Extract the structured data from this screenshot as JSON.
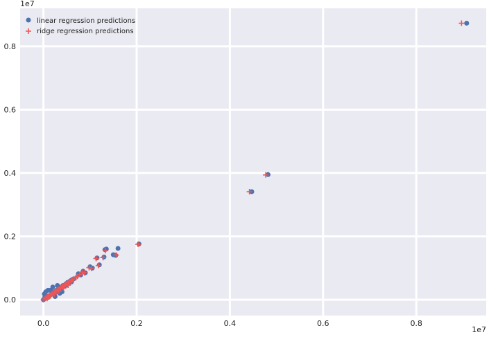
{
  "chart_data": {
    "type": "scatter",
    "title": "",
    "xlabel": "",
    "ylabel": "",
    "x_offset_label": "1e7",
    "y_offset_label": "1e7",
    "xlim": [
      -0.05,
      0.95
    ],
    "ylim": [
      -0.05,
      0.92
    ],
    "xticks": [
      0.0,
      0.2,
      0.4,
      0.6,
      0.8
    ],
    "xtick_labels": [
      "0.0",
      "0.2",
      "0.4",
      "0.6",
      "0.8"
    ],
    "yticks": [
      0.0,
      0.2,
      0.4,
      0.6,
      0.8
    ],
    "ytick_labels": [
      "0.0",
      "0.2",
      "0.4",
      "0.6",
      "0.8"
    ],
    "grid": true,
    "legend_position": "top-left",
    "series": [
      {
        "name": "linear regression predictions",
        "marker": "circle",
        "color": "#4c72b0",
        "points": [
          [
            0.0,
            0.0
          ],
          [
            0.005,
            0.005
          ],
          [
            0.008,
            0.01
          ],
          [
            0.01,
            0.007
          ],
          [
            0.012,
            0.012
          ],
          [
            0.015,
            0.015
          ],
          [
            0.018,
            0.02
          ],
          [
            0.02,
            0.018
          ],
          [
            0.022,
            0.025
          ],
          [
            0.025,
            0.022
          ],
          [
            0.028,
            0.03
          ],
          [
            0.03,
            0.028
          ],
          [
            0.033,
            0.035
          ],
          [
            0.035,
            0.032
          ],
          [
            0.038,
            0.04
          ],
          [
            0.04,
            0.038
          ],
          [
            0.042,
            0.045
          ],
          [
            0.045,
            0.042
          ],
          [
            0.048,
            0.05
          ],
          [
            0.05,
            0.046
          ],
          [
            0.052,
            0.055
          ],
          [
            0.055,
            0.052
          ],
          [
            0.058,
            0.06
          ],
          [
            0.06,
            0.056
          ],
          [
            0.062,
            0.064
          ],
          [
            0.065,
            0.066
          ],
          [
            0.005,
            0.025
          ],
          [
            0.01,
            0.03
          ],
          [
            0.02,
            0.04
          ],
          [
            0.025,
            0.01
          ],
          [
            0.03,
            0.045
          ],
          [
            0.035,
            0.02
          ],
          [
            0.002,
            0.018
          ],
          [
            0.003,
            0.008
          ],
          [
            0.015,
            0.03
          ],
          [
            0.04,
            0.025
          ],
          [
            0.075,
            0.082
          ],
          [
            0.08,
            0.078
          ],
          [
            0.085,
            0.09
          ],
          [
            0.09,
            0.085
          ],
          [
            0.1,
            0.104
          ],
          [
            0.105,
            0.1
          ],
          [
            0.115,
            0.132
          ],
          [
            0.12,
            0.11
          ],
          [
            0.13,
            0.135
          ],
          [
            0.132,
            0.158
          ],
          [
            0.135,
            0.16
          ],
          [
            0.15,
            0.142
          ],
          [
            0.155,
            0.14
          ],
          [
            0.16,
            0.162
          ],
          [
            0.205,
            0.176
          ],
          [
            0.447,
            0.341
          ],
          [
            0.482,
            0.395
          ],
          [
            0.908,
            0.873
          ]
        ]
      },
      {
        "name": "ridge regression predictions",
        "marker": "plus",
        "color": "#ee5555",
        "points": [
          [
            0.0,
            0.0
          ],
          [
            0.004,
            0.004
          ],
          [
            0.007,
            0.008
          ],
          [
            0.01,
            0.01
          ],
          [
            0.012,
            0.011
          ],
          [
            0.014,
            0.014
          ],
          [
            0.017,
            0.018
          ],
          [
            0.02,
            0.02
          ],
          [
            0.022,
            0.022
          ],
          [
            0.025,
            0.025
          ],
          [
            0.027,
            0.028
          ],
          [
            0.03,
            0.03
          ],
          [
            0.032,
            0.033
          ],
          [
            0.035,
            0.035
          ],
          [
            0.037,
            0.038
          ],
          [
            0.04,
            0.04
          ],
          [
            0.042,
            0.043
          ],
          [
            0.045,
            0.045
          ],
          [
            0.047,
            0.048
          ],
          [
            0.05,
            0.05
          ],
          [
            0.052,
            0.053
          ],
          [
            0.055,
            0.055
          ],
          [
            0.057,
            0.058
          ],
          [
            0.06,
            0.06
          ],
          [
            0.062,
            0.063
          ],
          [
            0.065,
            0.065
          ],
          [
            0.008,
            0.004
          ],
          [
            0.015,
            0.012
          ],
          [
            0.023,
            0.018
          ],
          [
            0.033,
            0.027
          ],
          [
            0.043,
            0.036
          ],
          [
            0.053,
            0.046
          ],
          [
            0.07,
            0.07
          ],
          [
            0.073,
            0.074
          ],
          [
            0.078,
            0.08
          ],
          [
            0.083,
            0.087
          ],
          [
            0.088,
            0.085
          ],
          [
            0.098,
            0.101
          ],
          [
            0.103,
            0.099
          ],
          [
            0.113,
            0.13
          ],
          [
            0.118,
            0.108
          ],
          [
            0.128,
            0.133
          ],
          [
            0.133,
            0.155
          ],
          [
            0.156,
            0.141
          ],
          [
            0.203,
            0.175
          ],
          [
            0.442,
            0.341
          ],
          [
            0.477,
            0.394
          ],
          [
            0.897,
            0.873
          ]
        ]
      }
    ]
  }
}
